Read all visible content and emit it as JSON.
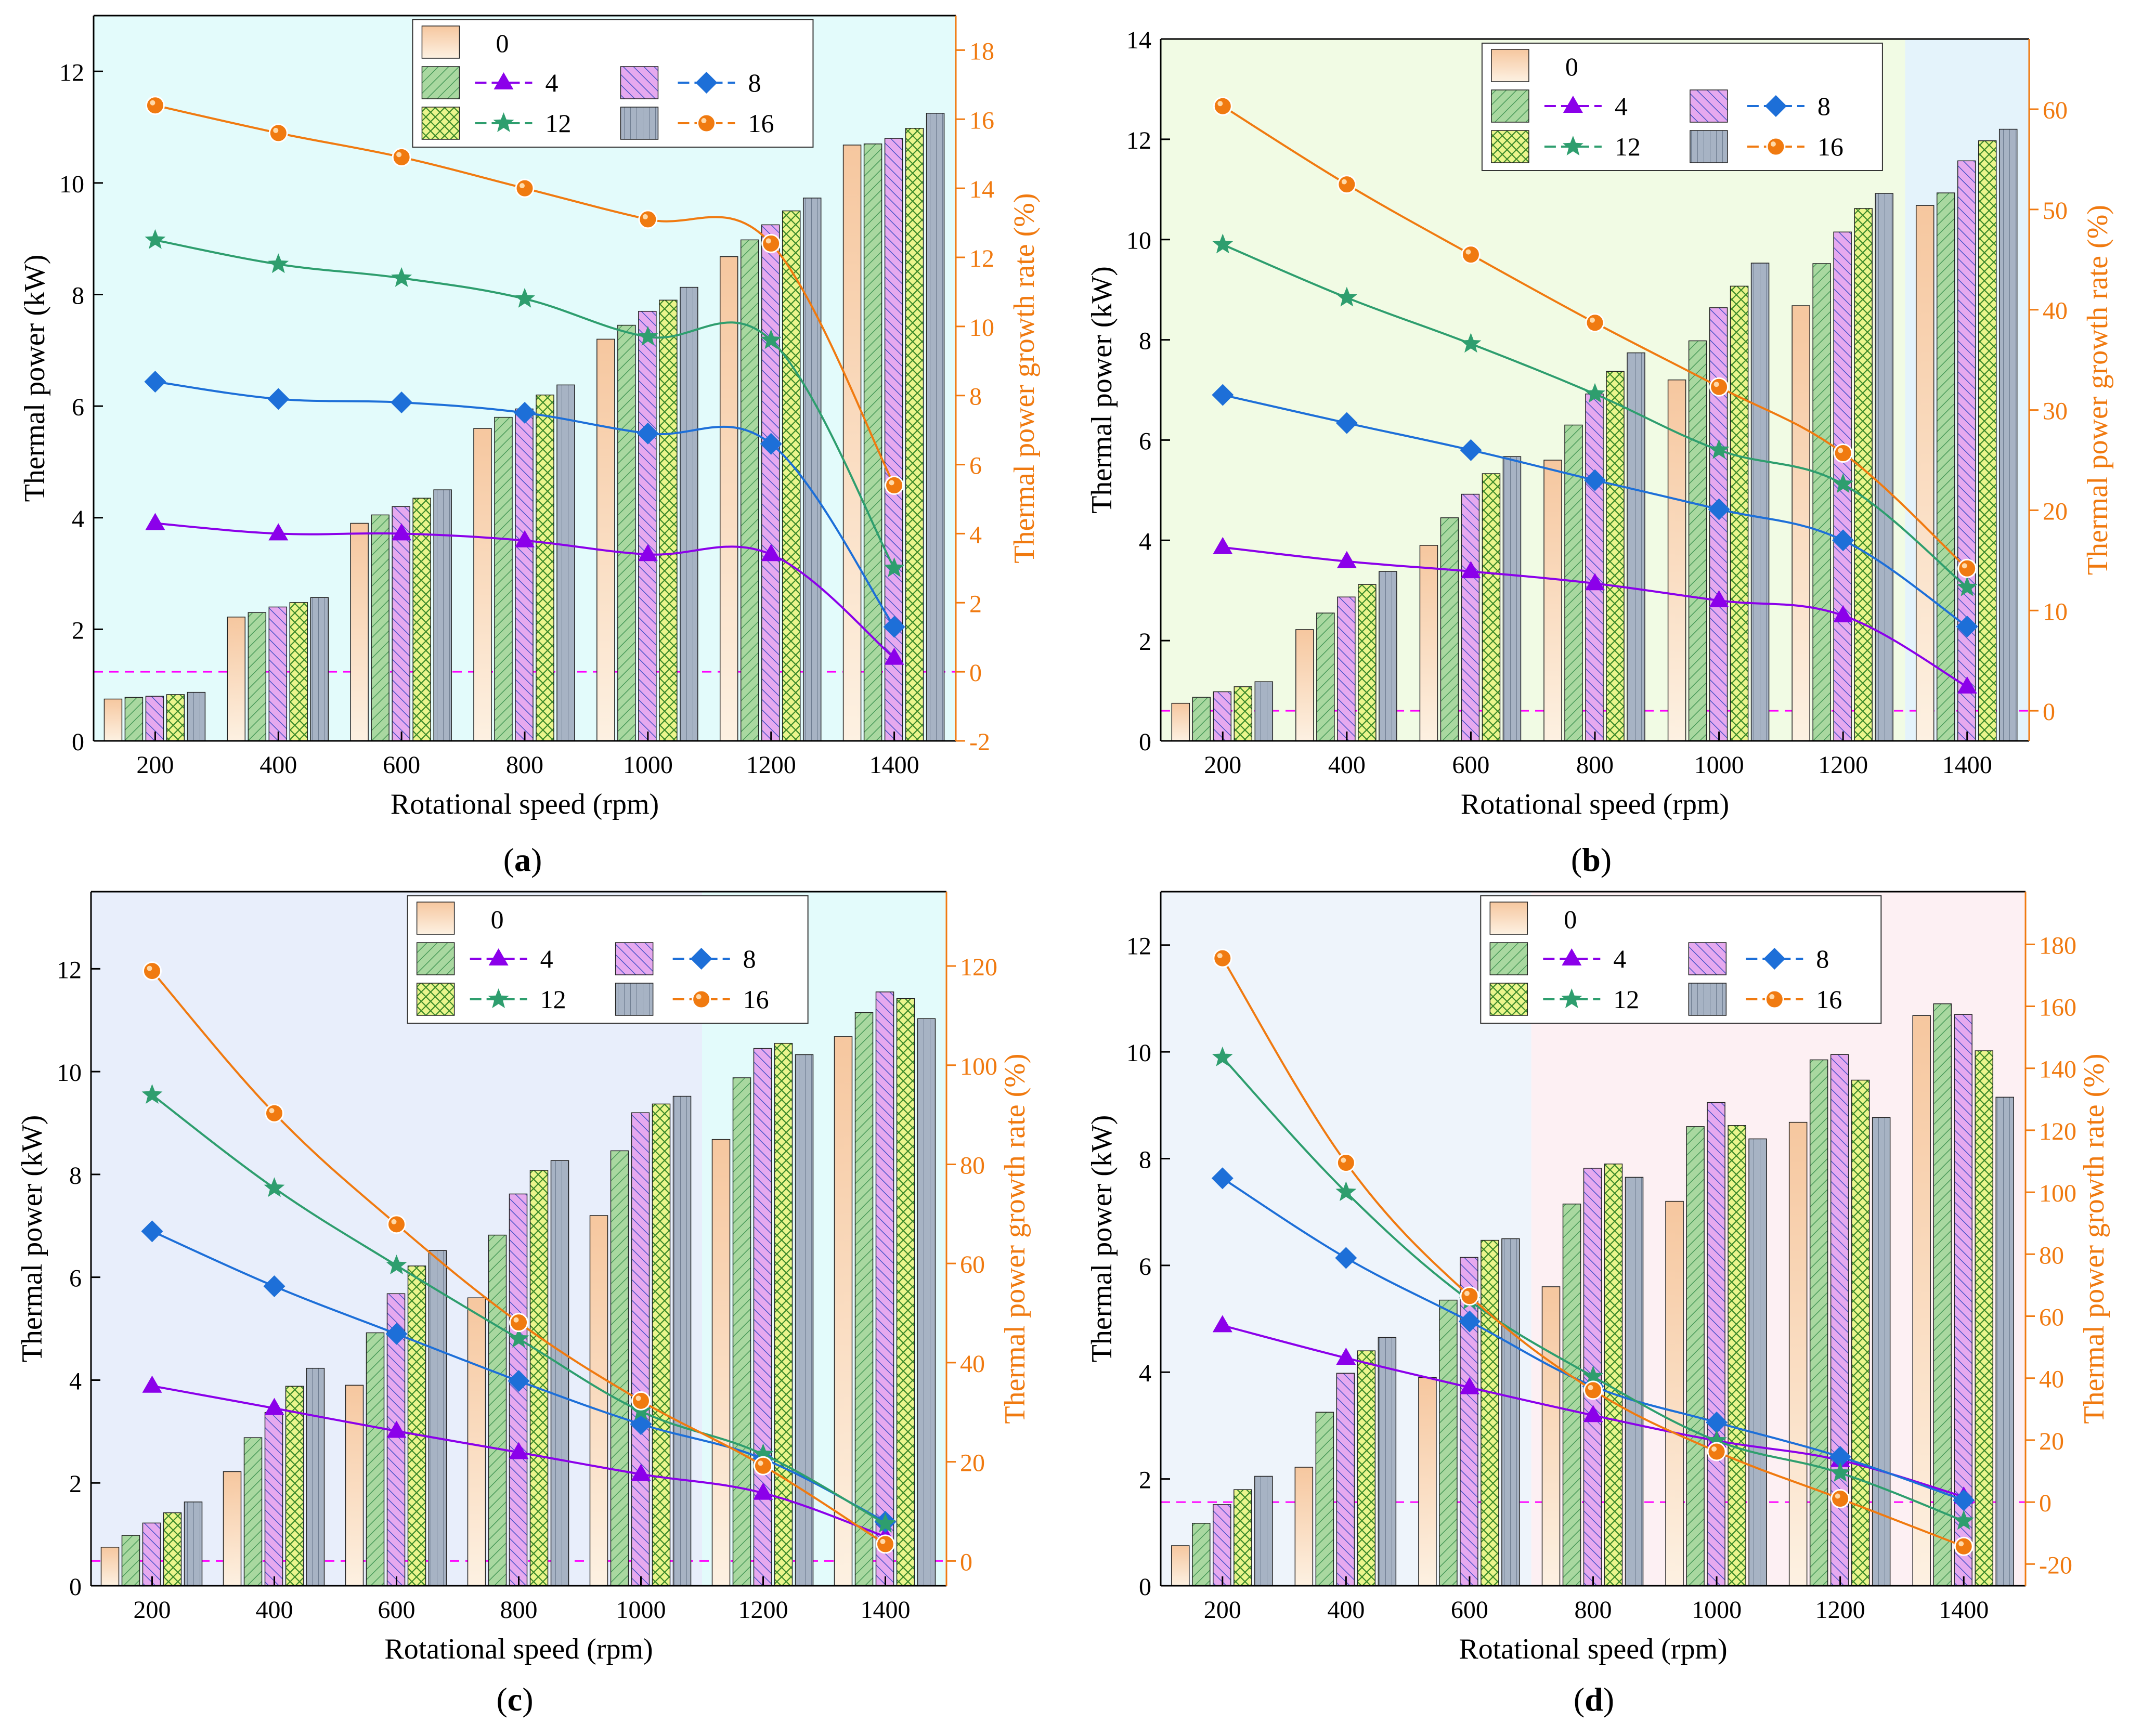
{
  "figure": {
    "x_axis_label": "Rotational speed (rpm)",
    "y_left_label": "Thermal power (kW)",
    "y_right_label": "Thermal power growth rate (%)",
    "legend_entries": [
      "0",
      "4",
      "8",
      "12",
      "16"
    ]
  },
  "colors": {
    "bar_0": "#f6c79f",
    "bar_4": "#a9d8a0",
    "bar_8": "#e6a9ef",
    "bar_12": "#ebf58c",
    "bar_16": "#a7b3c4",
    "line_4": "#8b00ea",
    "line_8": "#1d6fd8",
    "line_12": "#2e9e6e",
    "line_16": "#f07a10",
    "axis_right": "#f07a10",
    "zero_line": "#ff00ff"
  },
  "chart_data": [
    {
      "panel_label": "(a)",
      "panel_letter": "a",
      "type": "bar+line",
      "categories": [
        "200",
        "400",
        "600",
        "800",
        "1000",
        "1200",
        "1400"
      ],
      "xlabel": "Rotational speed (rpm)",
      "ylabel": "Thermal power (kW)",
      "y2label": "Thermal power growth rate (%)",
      "ylim": [
        0,
        13
      ],
      "yticks": [
        0,
        2,
        4,
        6,
        8,
        10,
        12
      ],
      "y2lim": [
        -2,
        19
      ],
      "y2ticks": [
        -2,
        0,
        2,
        4,
        6,
        8,
        10,
        12,
        14,
        16,
        18
      ],
      "background": [
        {
          "from": 100,
          "to": 1500,
          "color": "#e3fbfb"
        }
      ],
      "bar_series": [
        {
          "name": "0",
          "values": [
            0.75,
            2.22,
            3.9,
            5.6,
            7.2,
            8.68,
            10.68
          ]
        },
        {
          "name": "4",
          "values": [
            0.78,
            2.3,
            4.05,
            5.8,
            7.45,
            8.98,
            10.7
          ]
        },
        {
          "name": "8",
          "values": [
            0.8,
            2.4,
            4.2,
            5.95,
            7.7,
            9.25,
            10.8
          ]
        },
        {
          "name": "12",
          "values": [
            0.83,
            2.48,
            4.35,
            6.2,
            7.9,
            9.5,
            10.98
          ]
        },
        {
          "name": "16",
          "values": [
            0.87,
            2.57,
            4.5,
            6.38,
            8.13,
            9.73,
            11.25
          ]
        }
      ],
      "line_series": [
        {
          "name": "4",
          "values": [
            4.3,
            4.0,
            4.0,
            3.8,
            3.4,
            3.4,
            0.4
          ]
        },
        {
          "name": "8",
          "values": [
            8.4,
            7.9,
            7.8,
            7.5,
            6.9,
            6.6,
            1.3
          ]
        },
        {
          "name": "12",
          "values": [
            12.5,
            11.8,
            11.4,
            10.8,
            9.7,
            9.6,
            3.0
          ]
        },
        {
          "name": "16",
          "values": [
            16.4,
            15.6,
            14.9,
            14.0,
            13.1,
            12.4,
            5.4
          ]
        }
      ],
      "zero_line_y2": 0
    },
    {
      "panel_label": "(b)",
      "panel_letter": "b",
      "type": "bar+line",
      "categories": [
        "200",
        "400",
        "600",
        "800",
        "1000",
        "1200",
        "1400"
      ],
      "xlabel": "Rotational speed (rpm)",
      "ylabel": "Thermal power (kW)",
      "y2label": "Thermal power growth rate (%)",
      "ylim": [
        0,
        14
      ],
      "yticks": [
        0,
        2,
        4,
        6,
        8,
        10,
        12,
        14
      ],
      "y2lim": [
        -3,
        67
      ],
      "y2ticks": [
        0,
        10,
        20,
        30,
        40,
        50,
        60
      ],
      "background": [
        {
          "from": 100,
          "to": 1300,
          "color": "#f1fbe4"
        },
        {
          "from": 1300,
          "to": 1500,
          "color": "#e4f3fb"
        }
      ],
      "bar_series": [
        {
          "name": "0",
          "values": [
            0.75,
            2.22,
            3.9,
            5.6,
            7.2,
            8.68,
            10.68
          ]
        },
        {
          "name": "4",
          "values": [
            0.87,
            2.55,
            4.45,
            6.3,
            7.98,
            9.52,
            10.93
          ]
        },
        {
          "name": "8",
          "values": [
            0.98,
            2.87,
            4.92,
            6.92,
            8.64,
            10.15,
            11.57
          ]
        },
        {
          "name": "12",
          "values": [
            1.08,
            3.12,
            5.33,
            7.37,
            9.07,
            10.62,
            11.97
          ]
        },
        {
          "name": "16",
          "values": [
            1.18,
            3.38,
            5.67,
            7.74,
            9.53,
            10.92,
            12.2
          ]
        }
      ],
      "line_series": [
        {
          "name": "4",
          "values": [
            16.3,
            14.9,
            13.9,
            12.7,
            11.0,
            9.5,
            2.4
          ]
        },
        {
          "name": "8",
          "values": [
            31.5,
            28.7,
            26.0,
            23.0,
            20.1,
            17.0,
            8.4
          ]
        },
        {
          "name": "12",
          "values": [
            46.5,
            41.2,
            36.6,
            31.6,
            26.0,
            22.6,
            12.3
          ]
        },
        {
          "name": "16",
          "values": [
            60.3,
            52.5,
            45.5,
            38.7,
            32.3,
            25.7,
            14.2
          ]
        }
      ],
      "zero_line_y2": 0
    },
    {
      "panel_label": "(c)",
      "panel_letter": "c",
      "type": "bar+line",
      "categories": [
        "200",
        "400",
        "600",
        "800",
        "1000",
        "1200",
        "1400"
      ],
      "xlabel": "Rotational speed (rpm)",
      "ylabel": "Thermal power (kW)",
      "y2label": "Thermal power growth rate (%)",
      "ylim": [
        0,
        13.5
      ],
      "yticks": [
        0,
        2,
        4,
        6,
        8,
        10,
        12
      ],
      "y2lim": [
        -5,
        135
      ],
      "y2ticks": [
        0,
        20,
        40,
        60,
        80,
        100,
        120
      ],
      "background": [
        {
          "from": 100,
          "to": 1100,
          "color": "#e8eefb"
        },
        {
          "from": 1100,
          "to": 1500,
          "color": "#e3fbfb"
        }
      ],
      "bar_series": [
        {
          "name": "0",
          "values": [
            0.75,
            2.22,
            3.9,
            5.6,
            7.2,
            8.68,
            10.68
          ]
        },
        {
          "name": "4",
          "values": [
            0.98,
            2.88,
            4.92,
            6.82,
            8.46,
            9.88,
            11.15
          ]
        },
        {
          "name": "8",
          "values": [
            1.22,
            3.37,
            5.68,
            7.62,
            9.2,
            10.45,
            11.55
          ]
        },
        {
          "name": "12",
          "values": [
            1.42,
            3.88,
            6.22,
            8.08,
            9.37,
            10.55,
            11.42
          ]
        },
        {
          "name": "16",
          "values": [
            1.63,
            4.23,
            6.52,
            8.27,
            9.52,
            10.33,
            11.03
          ]
        }
      ],
      "line_series": [
        {
          "name": "4",
          "values": [
            35.3,
            30.8,
            26.2,
            21.9,
            17.5,
            13.7,
            4.9
          ]
        },
        {
          "name": "8",
          "values": [
            66.5,
            55.4,
            45.8,
            36.3,
            27.6,
            20.6,
            7.9
          ]
        },
        {
          "name": "12",
          "values": [
            94.0,
            75.2,
            59.6,
            44.8,
            30.2,
            21.5,
            7.5
          ]
        },
        {
          "name": "16",
          "values": [
            119.0,
            90.3,
            67.9,
            48.1,
            32.3,
            19.2,
            3.4
          ]
        }
      ],
      "zero_line_y2": 0
    },
    {
      "panel_label": "(d)",
      "panel_letter": "d",
      "type": "bar+line",
      "categories": [
        "200",
        "400",
        "600",
        "800",
        "1000",
        "1200",
        "1400"
      ],
      "xlabel": "Rotational speed (rpm)",
      "ylabel": "Thermal power (kW)",
      "y2label": "Thermal power growth rate (%)",
      "ylim": [
        0,
        13
      ],
      "yticks": [
        0,
        2,
        4,
        6,
        8,
        10,
        12
      ],
      "y2lim": [
        -27,
        197
      ],
      "y2ticks": [
        -20,
        0,
        20,
        40,
        60,
        80,
        100,
        120,
        140,
        160,
        180
      ],
      "background": [
        {
          "from": 100,
          "to": 700,
          "color": "#eef4fb"
        },
        {
          "from": 700,
          "to": 1500,
          "color": "#fdf0f3"
        }
      ],
      "bar_series": [
        {
          "name": "0",
          "values": [
            0.75,
            2.22,
            3.9,
            5.6,
            7.2,
            8.68,
            10.68
          ]
        },
        {
          "name": "4",
          "values": [
            1.17,
            3.25,
            5.35,
            7.15,
            8.6,
            9.85,
            10.9
          ]
        },
        {
          "name": "8",
          "values": [
            1.52,
            3.98,
            6.15,
            7.82,
            9.05,
            9.95,
            10.7
          ]
        },
        {
          "name": "12",
          "values": [
            1.8,
            4.4,
            6.47,
            7.9,
            8.62,
            9.47,
            10.02
          ]
        },
        {
          "name": "16",
          "values": [
            2.05,
            4.65,
            6.5,
            7.65,
            8.37,
            8.77,
            9.15
          ]
        }
      ],
      "line_series": [
        {
          "name": "4",
          "values": [
            57.0,
            46.5,
            37.0,
            28.0,
            19.8,
            13.5,
            1.7
          ]
        },
        {
          "name": "8",
          "values": [
            104.5,
            78.8,
            58.3,
            37.4,
            25.7,
            14.6,
            0.6
          ]
        },
        {
          "name": "12",
          "values": [
            143.5,
            100.0,
            65.0,
            40.5,
            19.8,
            9.4,
            -6.1
          ]
        },
        {
          "name": "16",
          "values": [
            175.5,
            109.5,
            66.5,
            36.1,
            16.3,
            1.1,
            -14.3
          ]
        }
      ],
      "zero_line_y2": 0
    }
  ]
}
